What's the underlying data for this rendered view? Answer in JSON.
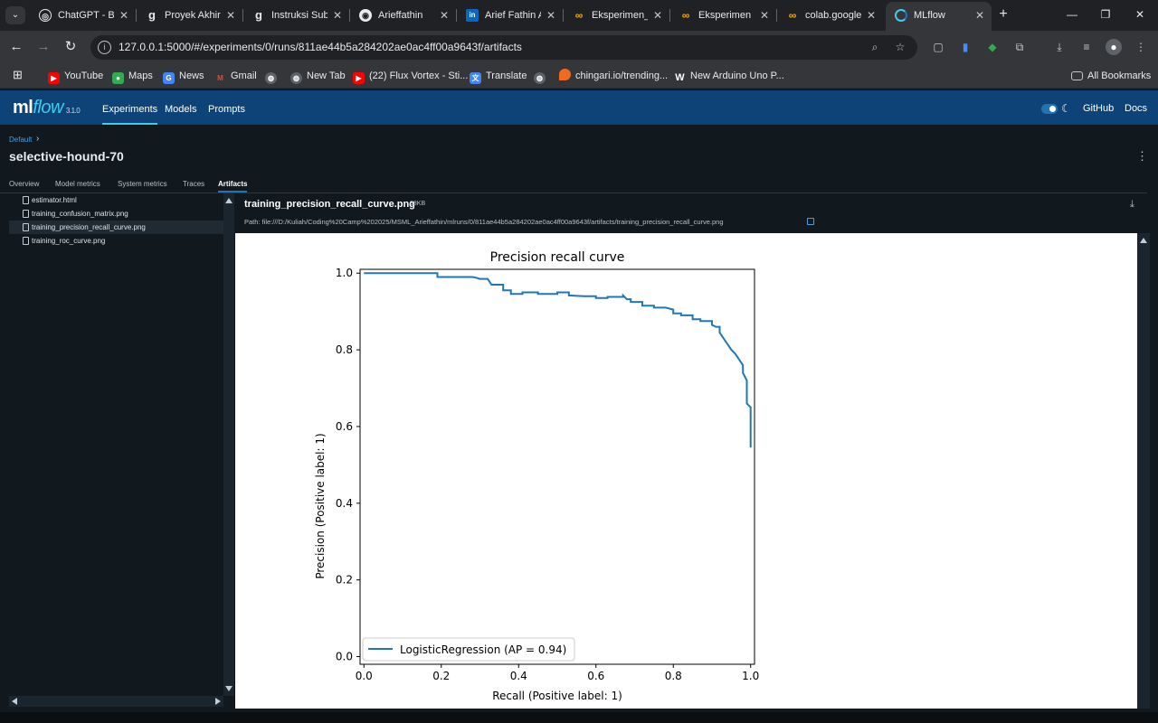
{
  "browser": {
    "tabs": [
      {
        "title": "ChatGPT - Bu",
        "icon": "chatgpt-icon"
      },
      {
        "title": "Proyek Akhir",
        "icon": "dicoding-icon"
      },
      {
        "title": "Instruksi Sub",
        "icon": "dicoding-icon"
      },
      {
        "title": "Arieffathin",
        "icon": "github-icon"
      },
      {
        "title": "Arief Fathin A",
        "icon": "linkedin-icon"
      },
      {
        "title": "Eksperimen_",
        "icon": "colab-icon"
      },
      {
        "title": "Eksperimen M",
        "icon": "colab-icon"
      },
      {
        "title": "colab.google",
        "icon": "colab-icon"
      },
      {
        "title": "MLflow",
        "icon": "mlflow-icon"
      }
    ],
    "url": "127.0.0.1:5000/#/experiments/0/runs/811ae44b5a284202ae0ac4ff00a9643f/artifacts",
    "bookmarks": [
      {
        "label": "YouTube"
      },
      {
        "label": "Maps"
      },
      {
        "label": "News"
      },
      {
        "label": "Gmail"
      },
      {
        "label": ""
      },
      {
        "label": "New Tab"
      },
      {
        "label": "(22) Flux Vortex - Sti..."
      },
      {
        "label": "Translate"
      },
      {
        "label": ""
      },
      {
        "label": "chingari.io/trending..."
      },
      {
        "label": "New Arduino Uno P..."
      }
    ],
    "all_bookmarks": "All Bookmarks"
  },
  "mlflow": {
    "logo_ml": "ml",
    "logo_flow": "flow",
    "version": "3.1.0",
    "nav": [
      "Experiments",
      "Models",
      "Prompts"
    ],
    "github": "GitHub",
    "docs": "Docs"
  },
  "run": {
    "breadcrumb": "Default",
    "title": "selective-hound-70",
    "tabs": [
      "Overview",
      "Model metrics",
      "System metrics",
      "Traces",
      "Artifacts"
    ]
  },
  "artifacts": {
    "files": [
      "estimator.html",
      "training_confusion_matrix.png",
      "training_precision_recall_curve.png",
      "training_roc_curve.png"
    ],
    "selected_title": "training_precision_recall_curve.png",
    "size": "38KB",
    "path": "Path: file:///D:/Kuliah/Coding%20Camp%202025/MSML_Arieffathin/mlruns/0/811ae44b5a284202ae0ac4ff00a9643f/artifacts/training_precision_recall_curve.png"
  },
  "chart_data": {
    "type": "line",
    "title": "Precision recall curve",
    "xlabel": "Recall (Positive label: 1)",
    "ylabel": "Precision (Positive label: 1)",
    "xlim": [
      -0.01,
      1.01
    ],
    "ylim": [
      -0.02,
      1.01
    ],
    "xticks": [
      "0.0",
      "0.2",
      "0.4",
      "0.6",
      "0.8",
      "1.0"
    ],
    "yticks": [
      "0.0",
      "0.2",
      "0.4",
      "0.6",
      "0.8",
      "1.0"
    ],
    "legend": "bottom-left",
    "color": "#1f77b4",
    "series": [
      {
        "name": "LogisticRegression (AP = 0.94)",
        "x": [
          0.0,
          0.19,
          0.19,
          0.28,
          0.29,
          0.3,
          0.32,
          0.33,
          0.36,
          0.36,
          0.38,
          0.38,
          0.41,
          0.41,
          0.45,
          0.45,
          0.5,
          0.5,
          0.53,
          0.53,
          0.57,
          0.6,
          0.6,
          0.63,
          0.63,
          0.67,
          0.67,
          0.68,
          0.69,
          0.69,
          0.72,
          0.72,
          0.75,
          0.75,
          0.78,
          0.8,
          0.8,
          0.82,
          0.82,
          0.85,
          0.85,
          0.87,
          0.87,
          0.9,
          0.9,
          0.91,
          0.92,
          0.92,
          0.93,
          0.94,
          0.95,
          0.96,
          0.97,
          0.98,
          0.98,
          0.99,
          0.99,
          0.99,
          1.0,
          1.0,
          1.0
        ],
        "y": [
          1.0,
          1.0,
          0.99,
          0.99,
          0.988,
          0.985,
          0.985,
          0.97,
          0.97,
          0.955,
          0.955,
          0.946,
          0.946,
          0.95,
          0.95,
          0.946,
          0.946,
          0.95,
          0.95,
          0.942,
          0.94,
          0.94,
          0.935,
          0.935,
          0.938,
          0.938,
          0.942,
          0.932,
          0.932,
          0.925,
          0.925,
          0.915,
          0.915,
          0.91,
          0.91,
          0.905,
          0.895,
          0.895,
          0.89,
          0.89,
          0.88,
          0.88,
          0.875,
          0.875,
          0.865,
          0.86,
          0.86,
          0.845,
          0.83,
          0.815,
          0.8,
          0.79,
          0.775,
          0.76,
          0.74,
          0.72,
          0.68,
          0.66,
          0.65,
          0.62,
          0.545
        ]
      }
    ]
  }
}
